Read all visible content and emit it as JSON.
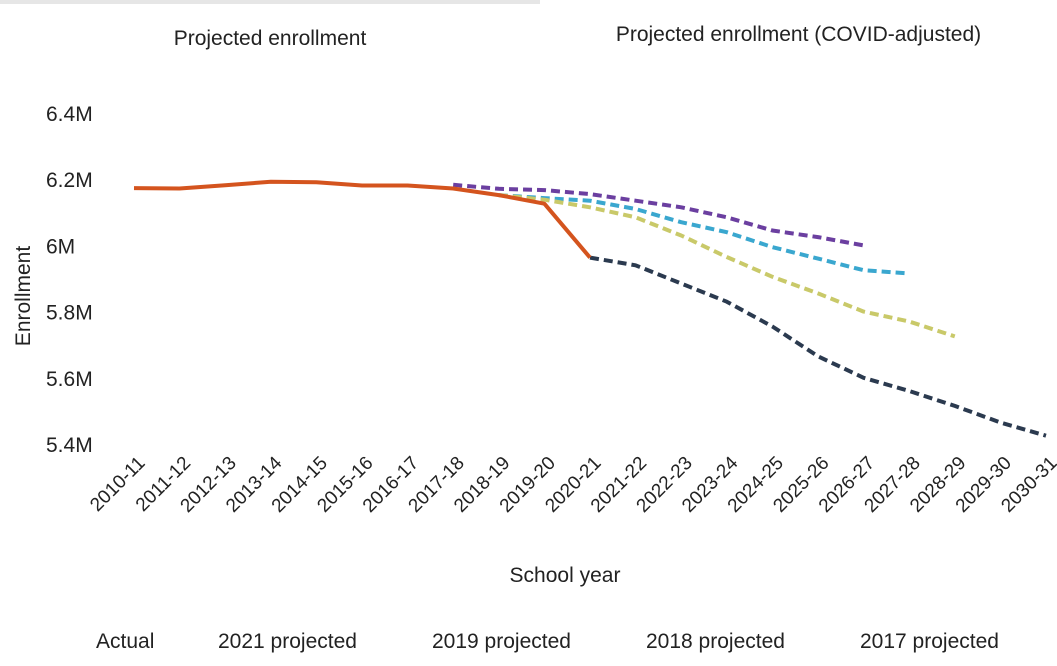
{
  "tabs": [
    {
      "label": "Projected enrollment",
      "active": true
    },
    {
      "label": "Projected enrollment (COVID-adjusted)",
      "active": false
    }
  ],
  "chart_data": {
    "type": "line",
    "xlabel": "School year",
    "ylabel": "Enrollment",
    "x": [
      "2010-11",
      "2011-12",
      "2012-13",
      "2013-14",
      "2014-15",
      "2015-16",
      "2016-17",
      "2017-18",
      "2018-19",
      "2019-20",
      "2020-21",
      "2021-22",
      "2022-23",
      "2023-24",
      "2024-25",
      "2025-26",
      "2026-27",
      "2027-28",
      "2028-29",
      "2029-30",
      "2030-31"
    ],
    "yticks": [
      5400000,
      5600000,
      5800000,
      6000000,
      6200000,
      6400000
    ],
    "ytick_labels": [
      "5.4M",
      "5.6M",
      "5.8M",
      "6M",
      "6.2M",
      "6.4M"
    ],
    "ylim": [
      5400000,
      6400000
    ],
    "grid": false,
    "legend_position": "bottom",
    "series": [
      {
        "name": "Actual",
        "color": "#d4541e",
        "style": "solid",
        "values": [
          6173000,
          6172000,
          6182000,
          6192000,
          6191000,
          6181000,
          6181000,
          6172000,
          6152000,
          6126000,
          5963000,
          null,
          null,
          null,
          null,
          null,
          null,
          null,
          null,
          null,
          null
        ]
      },
      {
        "name": "2021 projected",
        "color": "#2b3a4f",
        "style": "dashed",
        "values": [
          null,
          null,
          null,
          null,
          null,
          null,
          null,
          null,
          null,
          null,
          5963000,
          5940000,
          5885000,
          5830000,
          5755000,
          5665000,
          5600000,
          5560000,
          5515000,
          5465000,
          5425000
        ]
      },
      {
        "name": "2019 projected",
        "color": "#c9c969",
        "style": "dashed",
        "values": [
          null,
          null,
          null,
          null,
          null,
          null,
          null,
          null,
          6152000,
          6138000,
          6115000,
          6085000,
          6030000,
          5965000,
          5905000,
          5855000,
          5800000,
          5770000,
          5725000,
          null,
          null
        ]
      },
      {
        "name": "2018 projected",
        "color": "#3aa7cf",
        "style": "dashed",
        "values": [
          null,
          null,
          null,
          null,
          null,
          null,
          null,
          null,
          6152000,
          6143000,
          6135000,
          6110000,
          6070000,
          6040000,
          5995000,
          5960000,
          5925000,
          5915000,
          null,
          null,
          null
        ]
      },
      {
        "name": "2017 projected",
        "color": "#6b3fa0",
        "style": "dashed",
        "values": [
          null,
          null,
          null,
          null,
          null,
          null,
          null,
          6183000,
          6171000,
          6167000,
          6155000,
          6135000,
          6115000,
          6085000,
          6045000,
          6025000,
          6000000,
          null,
          null,
          null,
          null
        ]
      }
    ]
  }
}
